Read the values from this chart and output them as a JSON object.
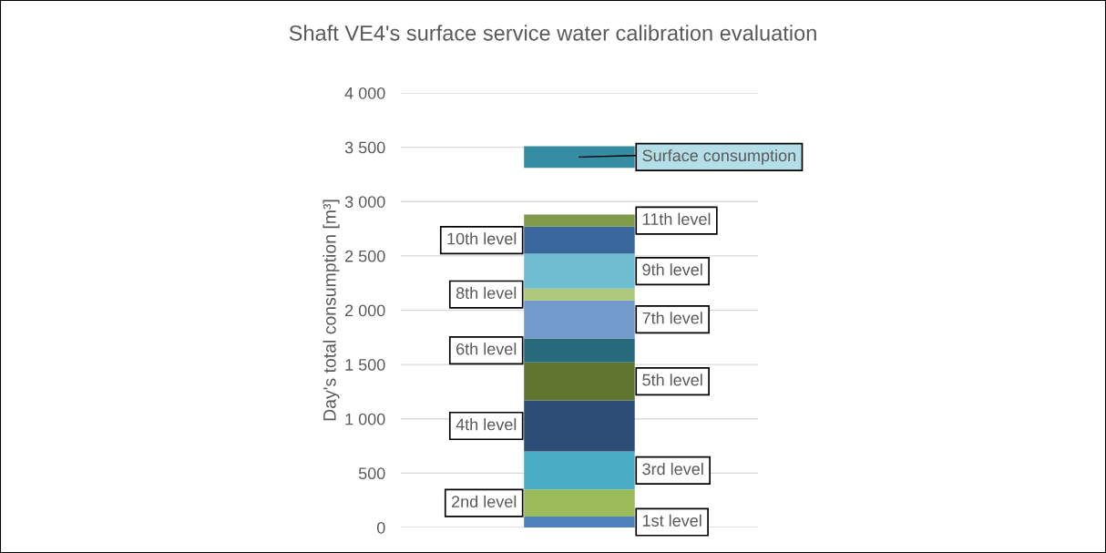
{
  "chart_data": {
    "type": "bar",
    "title": "Shaft VE4's surface service water calibration evaluation",
    "ylabel": "Day's total consumption [m³]",
    "categories": [
      null
    ],
    "ylim": [
      0,
      4000
    ],
    "yticks": [
      0,
      500,
      {
        "value": 1000,
        "label": "1 000"
      },
      {
        "value": 1500,
        "label": "1 500"
      },
      {
        "value": 2000,
        "label": "2 000"
      },
      {
        "value": 2500,
        "label": "2 500"
      },
      {
        "value": 3000,
        "label": "3 000"
      },
      {
        "value": 3500,
        "label": "3 500"
      },
      {
        "value": 4000,
        "label": "4 000"
      }
    ],
    "grid": "y",
    "legend": false,
    "tick_labels": "y",
    "series": [
      {
        "name": "1st level",
        "color": "#4f81bd",
        "values": [
          100
        ],
        "base": [
          0
        ]
      },
      {
        "name": "2nd level",
        "color": "#9bbb59",
        "values": [
          250
        ],
        "base": [
          100
        ]
      },
      {
        "name": "3rd level",
        "color": "#4bacc6",
        "values": [
          350
        ],
        "base": [
          350
        ]
      },
      {
        "name": "4th level",
        "color": "#2c4d75",
        "values": [
          470
        ],
        "base": [
          700
        ]
      },
      {
        "name": "5th level",
        "color": "#5f7530",
        "values": [
          350
        ],
        "base": [
          1170
        ]
      },
      {
        "name": "6th level",
        "color": "#276a7c",
        "values": [
          220
        ],
        "base": [
          1520
        ]
      },
      {
        "name": "7th level",
        "color": "#729aca",
        "values": [
          350
        ],
        "base": [
          1740
        ]
      },
      {
        "name": "8th level",
        "color": "#afc97a",
        "values": [
          110
        ],
        "base": [
          2090
        ]
      },
      {
        "name": "9th level",
        "color": "#6fbdd1",
        "values": [
          320
        ],
        "base": [
          2200
        ]
      },
      {
        "name": "10th level",
        "color": "#3a679c",
        "values": [
          250
        ],
        "base": [
          2520
        ]
      },
      {
        "name": "11th level",
        "color": "#7f9a48",
        "values": [
          110
        ],
        "base": [
          2770
        ]
      },
      {
        "name": "Surface consumption",
        "color": "#358ca3",
        "values": [
          200
        ],
        "base": [
          3310
        ]
      }
    ]
  }
}
